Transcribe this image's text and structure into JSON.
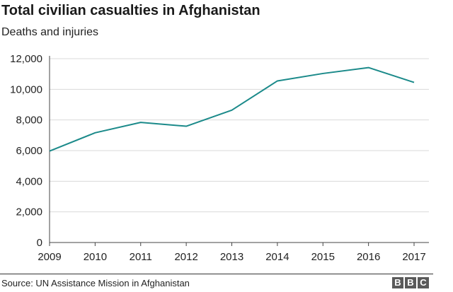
{
  "chart_data": {
    "type": "line",
    "title": "Total civilian casualties in Afghanistan",
    "subtitle": "Deaths and injuries",
    "xlabel": "",
    "ylabel": "",
    "categories": [
      "2009",
      "2010",
      "2011",
      "2012",
      "2013",
      "2014",
      "2015",
      "2016",
      "2017"
    ],
    "series": [
      {
        "name": "Civilian casualties",
        "values": [
          5969,
          7162,
          7842,
          7590,
          8638,
          10548,
          11034,
          11418,
          10453
        ],
        "color": "#1b8a8a"
      }
    ],
    "ylim": [
      0,
      12000
    ],
    "yticks": [
      0,
      2000,
      4000,
      6000,
      8000,
      10000,
      12000
    ],
    "ytick_labels": [
      "0",
      "2,000",
      "4,000",
      "6,000",
      "8,000",
      "10,000",
      "12,000"
    ],
    "grid": true
  },
  "footer": {
    "source": "Source: UN Assistance Mission in Afghanistan",
    "logo_letters": [
      "B",
      "B",
      "C"
    ]
  }
}
